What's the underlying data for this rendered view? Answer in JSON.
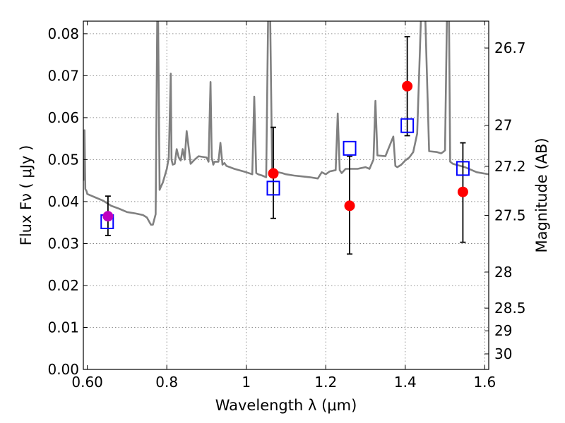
{
  "chart_data": {
    "type": "scatter",
    "title": "",
    "xlabel": "Wavelength  λ (μm)",
    "ylabel": "Flux  Fν  ( μJy )",
    "y2label": "Magnitude (AB)",
    "xlim": [
      0.59,
      1.61
    ],
    "ylim": [
      0.0,
      0.083
    ],
    "grid": true,
    "x_ticks": [
      0.6,
      0.8,
      1.0,
      1.2,
      1.4,
      1.6
    ],
    "x_tick_labels": [
      "0.60",
      "0.8",
      "1",
      "1.2",
      "1.4",
      "1.6"
    ],
    "y_ticks": [
      0.0,
      0.01,
      0.02,
      0.03,
      0.04,
      0.05,
      0.06,
      0.07,
      0.08
    ],
    "y_tick_labels": [
      "0.00",
      "0.01",
      "0.02",
      "0.03",
      "0.04",
      "0.05",
      "0.06",
      "0.07",
      "0.08"
    ],
    "y2_ticks": [
      {
        "label": "26.7",
        "flux": 0.0766
      },
      {
        "label": "27",
        "flux": 0.0582
      },
      {
        "label": "27.2",
        "flux": 0.0484
      },
      {
        "label": "27.5",
        "flux": 0.0367
      },
      {
        "label": "28",
        "flux": 0.0232
      },
      {
        "label": "28.5",
        "flux": 0.0146
      },
      {
        "label": "29",
        "flux": 0.0092
      },
      {
        "label": "30",
        "flux": 0.0037
      }
    ],
    "series": [
      {
        "type": "line",
        "color": "#808080",
        "x": [
          0.59,
          0.593,
          0.595,
          0.598,
          0.6,
          0.62,
          0.64,
          0.66,
          0.68,
          0.7,
          0.72,
          0.74,
          0.75,
          0.76,
          0.765,
          0.772,
          0.776,
          0.778,
          0.782,
          0.785,
          0.79,
          0.8,
          0.805,
          0.81,
          0.812,
          0.815,
          0.82,
          0.825,
          0.83,
          0.835,
          0.84,
          0.845,
          0.85,
          0.86,
          0.87,
          0.88,
          0.9,
          0.905,
          0.91,
          0.913,
          0.917,
          0.92,
          0.93,
          0.935,
          0.94,
          0.945,
          0.95,
          0.97,
          1.0,
          1.015,
          1.02,
          1.025,
          1.03,
          1.04,
          1.05,
          1.055,
          1.06,
          1.065,
          1.07,
          1.09,
          1.1,
          1.12,
          1.14,
          1.16,
          1.18,
          1.19,
          1.2,
          1.21,
          1.225,
          1.23,
          1.235,
          1.24,
          1.25,
          1.28,
          1.3,
          1.31,
          1.32,
          1.325,
          1.33,
          1.35,
          1.37,
          1.375,
          1.38,
          1.39,
          1.4,
          1.41,
          1.42,
          1.43,
          1.44,
          1.45,
          1.46,
          1.48,
          1.49,
          1.495,
          1.5,
          1.505,
          1.51,
          1.513,
          1.517,
          1.52,
          1.55,
          1.58,
          1.61
        ],
        "y": [
          0.045,
          0.057,
          0.043,
          0.0425,
          0.0418,
          0.041,
          0.0402,
          0.039,
          0.0383,
          0.0375,
          0.0372,
          0.0368,
          0.0362,
          0.0345,
          0.0345,
          0.037,
          0.085,
          0.085,
          0.0428,
          0.0435,
          0.0445,
          0.0478,
          0.0505,
          0.0705,
          0.05,
          0.0488,
          0.049,
          0.0525,
          0.0505,
          0.0498,
          0.0525,
          0.05,
          0.0568,
          0.049,
          0.05,
          0.0508,
          0.0505,
          0.0495,
          0.0685,
          0.0505,
          0.0488,
          0.0495,
          0.0495,
          0.054,
          0.0488,
          0.0492,
          0.0485,
          0.0478,
          0.047,
          0.0465,
          0.065,
          0.0468,
          0.0465,
          0.0462,
          0.0458,
          0.085,
          0.085,
          0.048,
          0.0472,
          0.0468,
          0.0465,
          0.0462,
          0.046,
          0.0458,
          0.0455,
          0.047,
          0.0465,
          0.0472,
          0.0475,
          0.061,
          0.0475,
          0.0468,
          0.0478,
          0.0478,
          0.0482,
          0.0478,
          0.05,
          0.064,
          0.051,
          0.0508,
          0.0555,
          0.0485,
          0.0482,
          0.0488,
          0.0498,
          0.0505,
          0.0518,
          0.0562,
          0.085,
          0.085,
          0.052,
          0.0518,
          0.0515,
          0.0518,
          0.0522,
          0.085,
          0.085,
          0.0495,
          0.0492,
          0.049,
          0.0482,
          0.047,
          0.0465
        ]
      },
      {
        "type": "observed",
        "marker": "circle",
        "color": "#ff0000",
        "x": [
          1.068,
          1.26,
          1.405,
          1.545
        ],
        "y": [
          0.0467,
          0.039,
          0.0675,
          0.0423
        ],
        "yerr_low": [
          0.0107,
          0.0115,
          0.0118,
          0.012
        ],
        "yerr_high": [
          0.011,
          0.0118,
          0.0118,
          0.0117
        ]
      },
      {
        "type": "observed",
        "marker": "circle",
        "color": "#bf00bf",
        "x": [
          0.652
        ],
        "y": [
          0.0365
        ],
        "yerr_low": [
          0.0046
        ],
        "yerr_high": [
          0.0048
        ]
      },
      {
        "type": "model",
        "marker": "square",
        "color": "#0000ff",
        "x": [
          0.65,
          1.068,
          1.26,
          1.405,
          1.545
        ],
        "y": [
          0.0352,
          0.0432,
          0.0527,
          0.0581,
          0.0479
        ]
      }
    ]
  }
}
